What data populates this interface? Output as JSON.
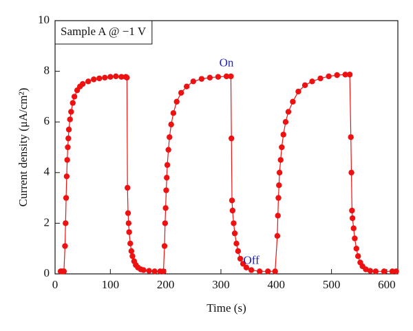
{
  "chart_data": {
    "type": "scatter-line",
    "xlabel": "Time (s)",
    "ylabel": "Current density (μA/cm²)",
    "color": "#ee1111",
    "annotations": [
      {
        "text": "Sample A @ −1 V",
        "boxed": true
      },
      {
        "text": "On",
        "x": 310,
        "y": 8.3,
        "color": "#1f1fb4"
      },
      {
        "text": "Off",
        "x": 355,
        "y": 0.5,
        "color": "#1f1fb4"
      }
    ],
    "xlim": [
      0,
      620
    ],
    "ylim": [
      0,
      10
    ],
    "xticks": [
      0,
      100,
      200,
      300,
      400,
      500,
      600
    ],
    "yticks": [
      0,
      2,
      4,
      6,
      8,
      10
    ],
    "x": [
      10,
      13,
      16,
      18,
      19,
      20,
      21,
      22,
      23,
      24,
      25,
      27,
      29,
      32,
      35,
      40,
      45,
      50,
      60,
      70,
      80,
      90,
      100,
      110,
      120,
      128,
      130,
      131,
      132,
      133,
      134,
      136,
      138,
      140,
      143,
      146,
      150,
      155,
      160,
      170,
      180,
      190,
      196,
      198,
      199,
      200,
      201,
      202,
      203,
      205,
      207,
      210,
      214,
      220,
      228,
      238,
      250,
      265,
      280,
      295,
      310,
      318,
      319,
      320,
      321,
      323,
      325,
      328,
      331,
      335,
      340,
      346,
      355,
      370,
      385,
      398,
      402,
      403,
      404,
      405,
      406,
      408,
      410,
      413,
      417,
      422,
      430,
      440,
      452,
      465,
      480,
      495,
      510,
      525,
      533,
      535,
      536,
      537,
      538,
      540,
      542,
      545,
      548,
      552,
      556,
      562,
      570,
      580,
      595,
      610,
      617
    ],
    "values": [
      0.1,
      0.1,
      0.1,
      1.1,
      2.0,
      3.0,
      3.85,
      4.5,
      5.0,
      5.35,
      5.7,
      6.1,
      6.4,
      6.75,
      7.0,
      7.25,
      7.4,
      7.5,
      7.6,
      7.68,
      7.72,
      7.75,
      7.78,
      7.8,
      7.78,
      7.78,
      7.75,
      3.4,
      2.4,
      2.0,
      1.65,
      1.2,
      0.9,
      0.7,
      0.5,
      0.35,
      0.25,
      0.18,
      0.15,
      0.12,
      0.1,
      0.1,
      0.1,
      1.1,
      2.0,
      2.6,
      3.3,
      3.8,
      4.3,
      4.9,
      5.4,
      5.9,
      6.35,
      6.8,
      7.15,
      7.4,
      7.6,
      7.7,
      7.75,
      7.78,
      7.8,
      7.8,
      5.35,
      2.9,
      2.5,
      2.0,
      1.6,
      1.2,
      0.9,
      0.6,
      0.4,
      0.25,
      0.15,
      0.1,
      0.1,
      0.1,
      1.5,
      2.3,
      3.0,
      3.5,
      4.0,
      4.5,
      5.0,
      5.5,
      6.0,
      6.4,
      6.8,
      7.2,
      7.45,
      7.6,
      7.72,
      7.8,
      7.85,
      7.87,
      7.87,
      5.4,
      4.0,
      2.5,
      2.2,
      1.8,
      1.4,
      1.0,
      0.7,
      0.45,
      0.3,
      0.18,
      0.12,
      0.1,
      0.1,
      0.1,
      0.1
    ]
  }
}
